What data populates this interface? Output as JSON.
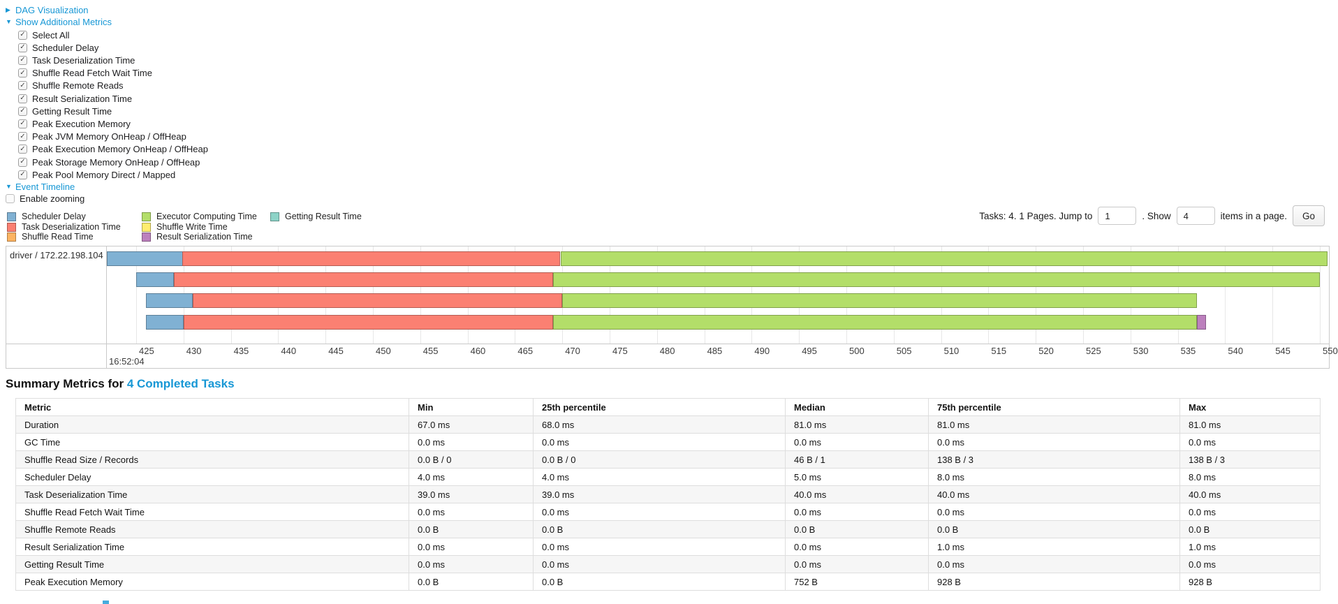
{
  "colors": {
    "link": "#1797d5"
  },
  "toggles": {
    "dag_visualization": "DAG Visualization",
    "show_additional_metrics": "Show Additional Metrics",
    "event_timeline": "Event Timeline"
  },
  "metrics_panel": {
    "items": [
      "Select All",
      "Scheduler Delay",
      "Task Deserialization Time",
      "Shuffle Read Fetch Wait Time",
      "Shuffle Remote Reads",
      "Result Serialization Time",
      "Getting Result Time",
      "Peak Execution Memory",
      "Peak JVM Memory OnHeap / OffHeap",
      "Peak Execution Memory OnHeap / OffHeap",
      "Peak Storage Memory OnHeap / OffHeap",
      "Peak Pool Memory Direct / Mapped"
    ]
  },
  "enable_zooming": {
    "label": "Enable zooming",
    "checked": false
  },
  "legend": {
    "columns": [
      [
        {
          "label": "Scheduler Delay",
          "color": "#80B1D3"
        },
        {
          "label": "Task Deserialization Time",
          "color": "#FB8072"
        },
        {
          "label": "Shuffle Read Time",
          "color": "#FDB462"
        }
      ],
      [
        {
          "label": "Executor Computing Time",
          "color": "#B3DE69"
        },
        {
          "label": "Shuffle Write Time",
          "color": "#FFED6F"
        },
        {
          "label": "Result Serialization Time",
          "color": "#BC80BD"
        }
      ],
      [
        {
          "label": "Getting Result Time",
          "color": "#8DD3C7"
        }
      ]
    ]
  },
  "pagination": {
    "tasks_text": "Tasks: 4. 1 Pages. Jump to",
    "jump_value": "1",
    "show_text": ". Show",
    "show_value": "4",
    "items_text": "items in a page.",
    "go_label": "Go"
  },
  "chart_data": {
    "type": "bar",
    "subtype": "horizontal-stacked-task-timeline",
    "group_label": "driver / 172.22.198.104",
    "x_axis": {
      "min": 425,
      "max": 550,
      "tick_step": 5,
      "major_label": "16:52:04",
      "unit": "ms"
    },
    "series_colors": {
      "scheduler-delay": "#80B1D3",
      "task-deserialization": "#FB8072",
      "shuffle-read": "#FDB462",
      "executor-computing": "#B3DE69",
      "shuffle-write": "#FFED6F",
      "result-serialization": "#BC80BD",
      "getting-result": "#8DD3C7"
    },
    "tasks": [
      {
        "start": 421.9,
        "segments": [
          [
            "scheduler-delay",
            8.0
          ],
          [
            "task-deserialization",
            39.9
          ],
          [
            "executor-computing",
            81.0
          ]
        ]
      },
      {
        "start": 425.0,
        "segments": [
          [
            "scheduler-delay",
            4.0
          ],
          [
            "task-deserialization",
            40.0
          ],
          [
            "executor-computing",
            81.0
          ]
        ]
      },
      {
        "start": 426.0,
        "segments": [
          [
            "scheduler-delay",
            5.0
          ],
          [
            "task-deserialization",
            39.0
          ],
          [
            "executor-computing",
            67.0
          ]
        ]
      },
      {
        "start": 426.0,
        "segments": [
          [
            "scheduler-delay",
            4.0
          ],
          [
            "task-deserialization",
            39.0
          ],
          [
            "executor-computing",
            68.0
          ],
          [
            "result-serialization",
            1.0
          ]
        ]
      }
    ]
  },
  "summary": {
    "title_prefix": "Summary Metrics for ",
    "title_link": "4 Completed Tasks",
    "columns": [
      "Metric",
      "Min",
      "25th percentile",
      "Median",
      "75th percentile",
      "Max"
    ],
    "rows": [
      {
        "metric": "Duration",
        "values": [
          "67.0 ms",
          "68.0 ms",
          "81.0 ms",
          "81.0 ms",
          "81.0 ms"
        ]
      },
      {
        "metric": "GC Time",
        "values": [
          "0.0 ms",
          "0.0 ms",
          "0.0 ms",
          "0.0 ms",
          "0.0 ms"
        ]
      },
      {
        "metric": "Shuffle Read Size / Records",
        "values": [
          "0.0 B / 0",
          "0.0 B / 0",
          "46 B / 1",
          "138 B / 3",
          "138 B / 3"
        ]
      },
      {
        "metric": "Scheduler Delay",
        "values": [
          "4.0 ms",
          "4.0 ms",
          "5.0 ms",
          "8.0 ms",
          "8.0 ms"
        ]
      },
      {
        "metric": "Task Deserialization Time",
        "values": [
          "39.0 ms",
          "39.0 ms",
          "40.0 ms",
          "40.0 ms",
          "40.0 ms"
        ]
      },
      {
        "metric": "Shuffle Read Fetch Wait Time",
        "values": [
          "0.0 ms",
          "0.0 ms",
          "0.0 ms",
          "0.0 ms",
          "0.0 ms"
        ]
      },
      {
        "metric": "Shuffle Remote Reads",
        "values": [
          "0.0 B",
          "0.0 B",
          "0.0 B",
          "0.0 B",
          "0.0 B"
        ]
      },
      {
        "metric": "Result Serialization Time",
        "values": [
          "0.0 ms",
          "0.0 ms",
          "0.0 ms",
          "1.0 ms",
          "1.0 ms"
        ]
      },
      {
        "metric": "Getting Result Time",
        "values": [
          "0.0 ms",
          "0.0 ms",
          "0.0 ms",
          "0.0 ms",
          "0.0 ms"
        ]
      },
      {
        "metric": "Peak Execution Memory",
        "values": [
          "0.0 B",
          "0.0 B",
          "752 B",
          "928 B",
          "928 B"
        ]
      }
    ]
  }
}
